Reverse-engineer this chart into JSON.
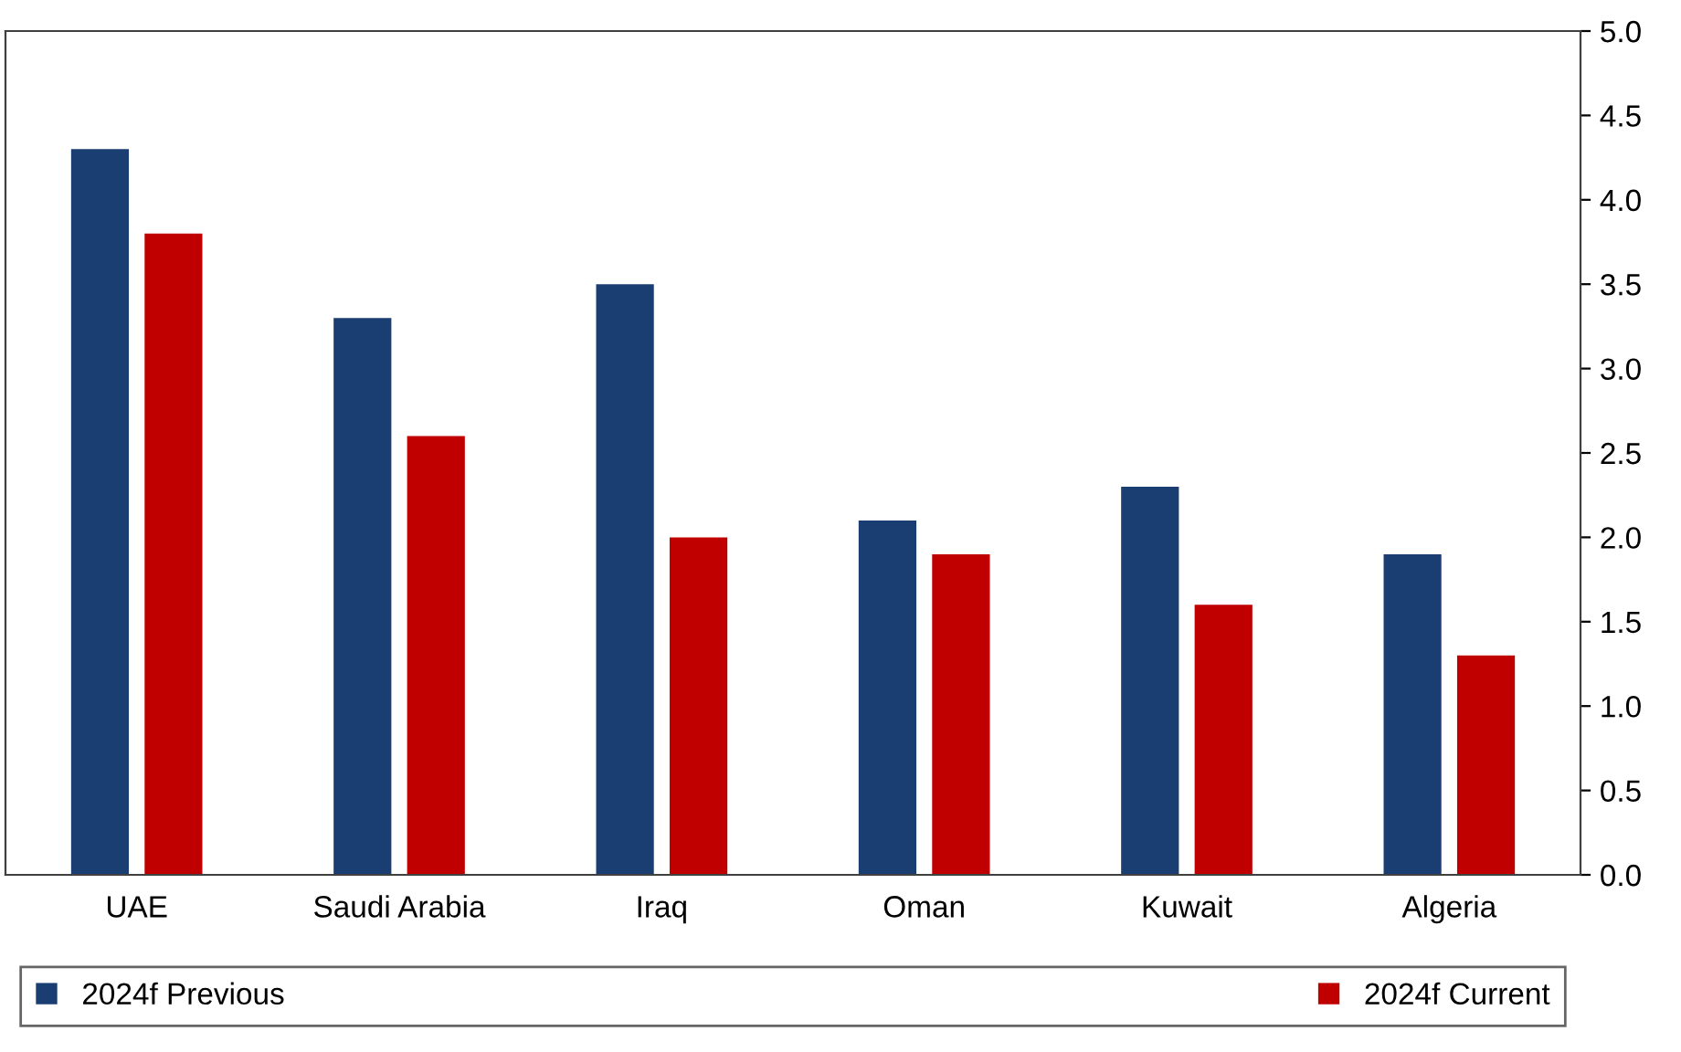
{
  "chart_data": {
    "type": "bar",
    "categories": [
      "UAE",
      "Saudi Arabia",
      "Iraq",
      "Oman",
      "Kuwait",
      "Algeria"
    ],
    "series": [
      {
        "name": "2024f Previous",
        "color": "#1a3e72",
        "values": [
          4.3,
          3.3,
          3.5,
          2.1,
          2.3,
          1.9
        ]
      },
      {
        "name": "2024f Current",
        "color": "#c00000",
        "values": [
          3.8,
          2.6,
          2.0,
          1.9,
          1.6,
          1.3
        ]
      }
    ],
    "ylim": [
      0,
      5
    ],
    "yticks": [
      {
        "value": 0,
        "label": "0.0"
      },
      {
        "value": 0.5,
        "label": "0.5"
      },
      {
        "value": 1,
        "label": "1.0"
      },
      {
        "value": 1.5,
        "label": "1.5"
      },
      {
        "value": 2,
        "label": "2.0"
      },
      {
        "value": 2.5,
        "label": "2.5"
      },
      {
        "value": 3,
        "label": "3.0"
      },
      {
        "value": 3.5,
        "label": "3.5"
      },
      {
        "value": 4,
        "label": "4.0"
      },
      {
        "value": 4.5,
        "label": "4.5"
      },
      {
        "value": 5,
        "label": "5.0"
      }
    ],
    "grid": false,
    "legend": "bottom"
  }
}
